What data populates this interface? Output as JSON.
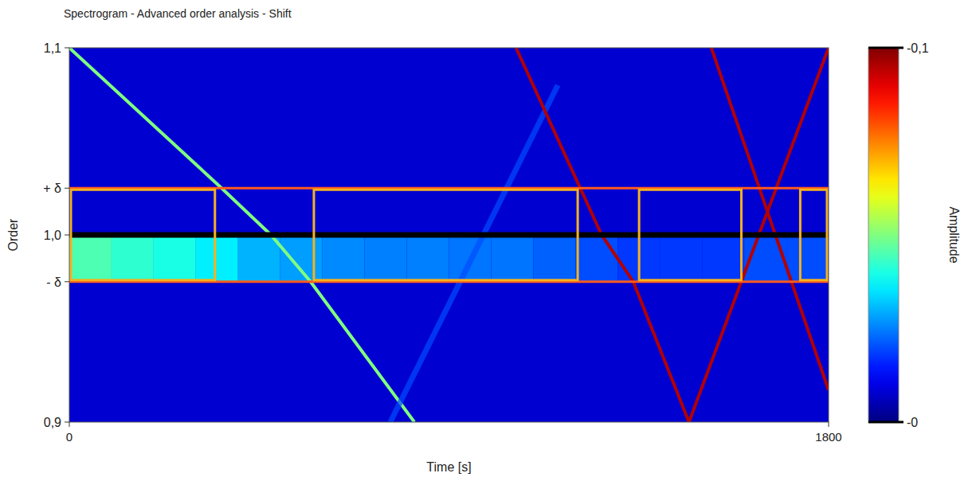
{
  "chart_data": {
    "type": "spectrogram",
    "title": "Spectrogram - Advanced order analysis - Shift",
    "x_label": "Time [s]",
    "y_label": "Order",
    "xlim": [
      0,
      1800
    ],
    "ylim": [
      0.9,
      1.1
    ],
    "xticks": [
      0,
      1800
    ],
    "yticks": [
      {
        "value": 0.9,
        "label": "0,9"
      },
      {
        "value": 0.975,
        "label": "- δ"
      },
      {
        "value": 1.0,
        "label": "1,0"
      },
      {
        "value": 1.025,
        "label": "+ δ"
      },
      {
        "value": 1.1,
        "label": "1,1"
      }
    ],
    "reference": 1.0,
    "band": [
      0.975,
      1.025
    ],
    "background_amplitude": 0.008,
    "band_cells": {
      "order": [
        0.975,
        1.0
      ],
      "time_edges": [
        0,
        100,
        200,
        300,
        400,
        500,
        600,
        700,
        800,
        900,
        1000,
        1100,
        1200,
        1300,
        1400,
        1500,
        1600,
        1700,
        1800
      ],
      "amplitude": [
        0.045,
        0.042,
        0.04,
        0.036,
        0.03,
        0.028,
        0.026,
        0.025,
        0.025,
        0.024,
        0.024,
        0.022,
        0.02,
        0.018,
        0.018,
        0.018,
        0.02,
        0.02
      ]
    },
    "tracks": [
      {
        "time": [
          0,
          361,
          478,
          572,
          818
        ],
        "order": [
          1.1,
          1.025,
          1.0,
          0.975,
          0.9
        ],
        "amplitude": 0.05
      },
      {
        "time": [
          761,
          1158
        ],
        "order": [
          0.9,
          1.08
        ],
        "amplitude": 0.02
      },
      {
        "time": [
          1059,
          1262,
          1337,
          1469
        ],
        "order": [
          1.1,
          1.0,
          0.975,
          0.9
        ],
        "amplitude": 0.095
      },
      {
        "time": [
          1469,
          1800
        ],
        "order": [
          0.9,
          1.1
        ],
        "amplitude": 0.095
      },
      {
        "time": [
          1522,
          1800
        ],
        "order": [
          1.1,
          0.917
        ],
        "amplitude": 0.095
      }
    ],
    "windows": [
      {
        "start": 0,
        "end": 349
      },
      {
        "start": 576,
        "end": 1209
      },
      {
        "start": 1347,
        "end": 1597
      },
      {
        "start": 1729,
        "end": 1800
      }
    ],
    "colorbar_label": "Amplitude",
    "colorbar_range": [
      0,
      0.1
    ],
    "colorbar_ticks": [
      {
        "value": 0.1,
        "label": "-0,1"
      },
      {
        "value": 0,
        "label": "-0"
      }
    ]
  }
}
